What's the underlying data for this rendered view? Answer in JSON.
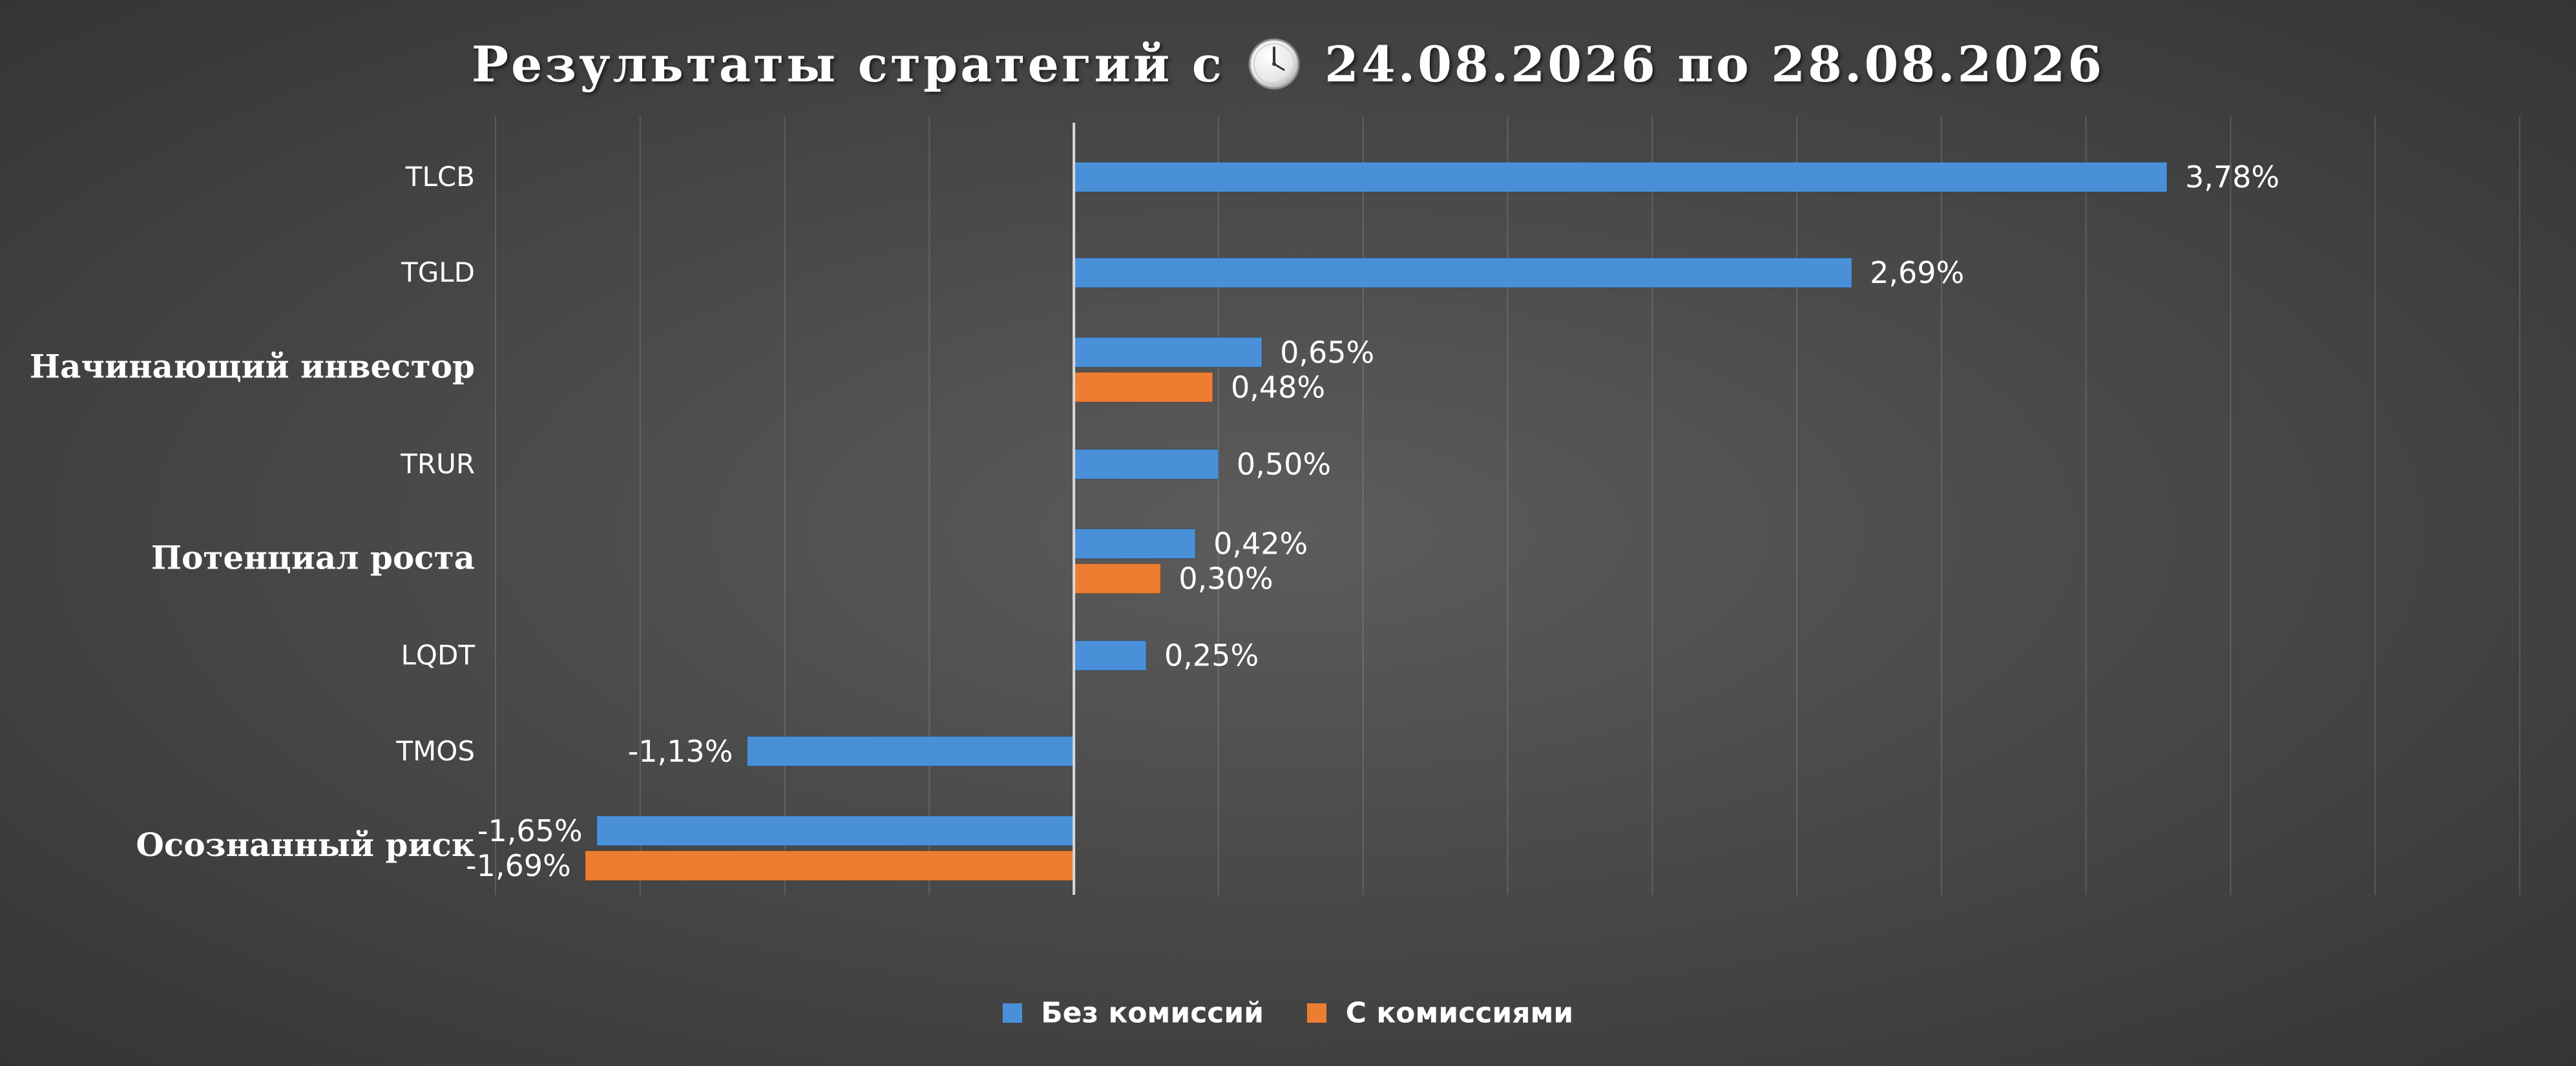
{
  "title": {
    "prefix": "Результаты стратегий с",
    "suffix": "24.08.2026 по 28.08.2026",
    "icon": "clock-icon"
  },
  "colors": {
    "series_1": "#4a90d9",
    "series_2": "#ed7d31"
  },
  "chart_data": {
    "type": "bar",
    "orientation": "horizontal",
    "categories": [
      "TLCB",
      "TGLD",
      "Начинающий инвестор",
      "TRUR",
      "Потенциал роста",
      "LQDT",
      "TMOS",
      "Осознанный риск"
    ],
    "series": [
      {
        "name": "Без комиссий",
        "values": [
          3.78,
          2.69,
          0.65,
          0.5,
          0.42,
          0.25,
          -1.13,
          -1.65
        ],
        "labels": [
          "3,78%",
          "2,69%",
          "0,65%",
          "0,50%",
          "0,42%",
          "0,25%",
          "-1,13%",
          "-1,65%"
        ]
      },
      {
        "name": "С комиссиями",
        "values": [
          null,
          null,
          0.48,
          null,
          0.3,
          null,
          null,
          -1.69
        ],
        "labels": [
          null,
          null,
          "0,48%",
          null,
          "0,30%",
          null,
          null,
          "-1,69%"
        ]
      }
    ],
    "xlim": [
      -2.0,
      5.0
    ],
    "grid": true,
    "legend": "bottom-center",
    "strategy_categories": [
      "Начинающий инвестор",
      "Потенциал роста",
      "Осознанный риск"
    ]
  }
}
